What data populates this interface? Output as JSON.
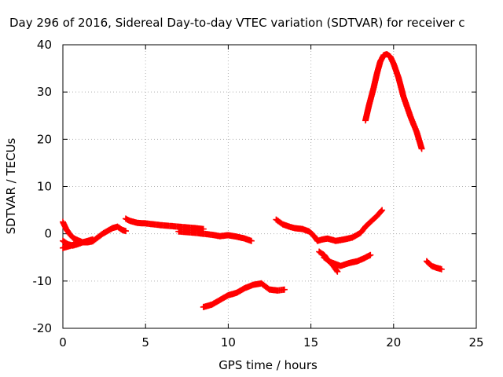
{
  "chart_data": {
    "type": "scatter",
    "title": "Day 296 of 2016, Sidereal Day-to-day VTEC variation (SDTVAR) for receiver c",
    "xlabel": "GPS time / hours",
    "ylabel": "SDTVAR / TECUs",
    "xlim": [
      0,
      25
    ],
    "ylim": [
      -20,
      40
    ],
    "xticks": [
      0,
      5,
      10,
      15,
      20,
      25
    ],
    "yticks": [
      -20,
      -10,
      0,
      10,
      20,
      30,
      40
    ],
    "grid": true,
    "marker": "plus",
    "colors": {
      "series": "#ff0000",
      "grid": "#b0b0b0",
      "axes": "#000000"
    },
    "series": [
      {
        "x": [
          0.0,
          0.2,
          0.4,
          0.6,
          0.8,
          1.0,
          1.2,
          1.5,
          1.8,
          2.1,
          2.4,
          2.7,
          3.0,
          3.3,
          3.6,
          3.8
        ],
        "y": [
          2.5,
          1.0,
          0.0,
          -0.8,
          -1.2,
          -1.5,
          -1.8,
          -1.8,
          -1.6,
          -0.8,
          0.0,
          0.6,
          1.2,
          1.5,
          0.8,
          0.6
        ]
      },
      {
        "x": [
          0.0,
          0.3,
          0.6,
          0.9,
          1.2,
          1.5,
          1.8
        ],
        "y": [
          -1.5,
          -2.2,
          -2.5,
          -2.2,
          -1.8,
          -1.5,
          -1.2
        ]
      },
      {
        "x": [
          0.0,
          0.2,
          0.5,
          0.8,
          1.0
        ],
        "y": [
          -3.0,
          -2.8,
          -2.5,
          -2.0,
          -1.8
        ]
      },
      {
        "x": [
          3.8,
          4.0,
          4.5,
          5.0,
          6.0,
          7.0,
          8.0,
          8.5
        ],
        "y": [
          3.2,
          2.8,
          2.3,
          2.2,
          1.8,
          1.5,
          1.2,
          1.0
        ]
      },
      {
        "x": [
          7.0,
          8.0,
          9.0,
          9.5,
          10.0,
          10.5,
          11.0,
          11.4
        ],
        "y": [
          0.5,
          0.2,
          -0.2,
          -0.5,
          -0.3,
          -0.6,
          -1.0,
          -1.5
        ]
      },
      {
        "x": [
          8.5,
          9.0,
          9.5,
          10.0,
          10.5,
          11.0,
          11.5,
          12.0,
          12.5,
          13.0,
          13.4
        ],
        "y": [
          -15.5,
          -15.0,
          -14.0,
          -13.0,
          -12.5,
          -11.5,
          -10.8,
          -10.5,
          -11.8,
          -12.0,
          -11.8
        ]
      },
      {
        "x": [
          12.9,
          13.3,
          13.7,
          14.0,
          14.5,
          14.9,
          15.2,
          15.4,
          15.7,
          16.0,
          16.5,
          17.0,
          17.5,
          18.0,
          18.3,
          18.6,
          19.0,
          19.3
        ],
        "y": [
          3.0,
          2.0,
          1.5,
          1.2,
          1.0,
          0.5,
          -0.5,
          -1.5,
          -1.2,
          -1.0,
          -1.5,
          -1.2,
          -0.8,
          0.2,
          1.5,
          2.5,
          3.8,
          5.0
        ]
      },
      {
        "x": [
          15.5,
          15.8,
          16.0,
          16.3,
          16.6
        ],
        "y": [
          -3.8,
          -4.5,
          -5.5,
          -6.5,
          -8.0
        ]
      },
      {
        "x": [
          15.8,
          16.2,
          16.8,
          17.3,
          17.8,
          18.2,
          18.6
        ],
        "y": [
          -5.0,
          -6.0,
          -6.8,
          -6.2,
          -5.8,
          -5.2,
          -4.5
        ]
      },
      {
        "x": [
          18.3,
          18.5,
          18.8,
          19.0,
          19.2,
          19.4,
          19.6,
          19.8,
          20.0,
          20.3,
          20.6,
          21.0,
          21.4,
          21.7
        ],
        "y": [
          24.0,
          27.0,
          31.0,
          34.0,
          36.5,
          37.8,
          38.0,
          37.5,
          36.0,
          33.0,
          29.0,
          25.0,
          21.5,
          18.0
        ]
      },
      {
        "x": [
          22.0,
          22.3,
          22.6,
          22.9
        ],
        "y": [
          -5.8,
          -6.8,
          -7.2,
          -7.5
        ]
      }
    ]
  }
}
